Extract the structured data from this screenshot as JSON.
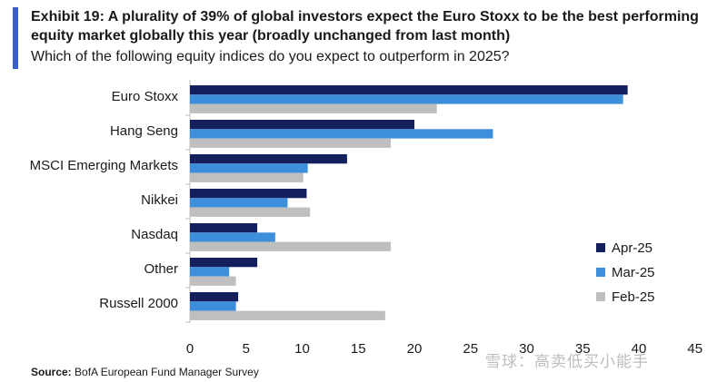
{
  "header": {
    "title": "Exhibit 19: A plurality of 39% of global investors expect the Euro Stoxx to be the best performing equity market globally this year (broadly unchanged from last month)",
    "subtitle": "Which of the following equity indices do you expect to outperform in 2025?"
  },
  "footer": {
    "source_label": "Source:",
    "source_text": " BofA European Fund Manager Survey",
    "watermark": "雪球：高卖低买小能手"
  },
  "colors": {
    "accent": "#3a5fcd"
  },
  "chart_data": {
    "type": "bar",
    "orientation": "horizontal",
    "categories": [
      "Euro Stoxx",
      "Hang Seng",
      "MSCI Emerging Markets",
      "Nikkei",
      "Nasdaq",
      "Other",
      "Russell 2000"
    ],
    "series": [
      {
        "name": "Apr-25",
        "color": "#14205e",
        "values": [
          39,
          20,
          14,
          10.4,
          6,
          6,
          4.3
        ]
      },
      {
        "name": "Mar-25",
        "color": "#3d8fdc",
        "values": [
          38.6,
          27,
          10.5,
          8.7,
          7.6,
          3.5,
          4.1
        ]
      },
      {
        "name": "Feb-25",
        "color": "#bfbfbf",
        "values": [
          22,
          17.9,
          10.1,
          10.7,
          17.9,
          4.1,
          17.4
        ]
      }
    ],
    "xlim": [
      0,
      45
    ],
    "xticks": [
      "0",
      "5",
      "10",
      "15",
      "20",
      "25",
      "30",
      "35",
      "40",
      "45"
    ],
    "legend_position": "right",
    "grid": false
  }
}
